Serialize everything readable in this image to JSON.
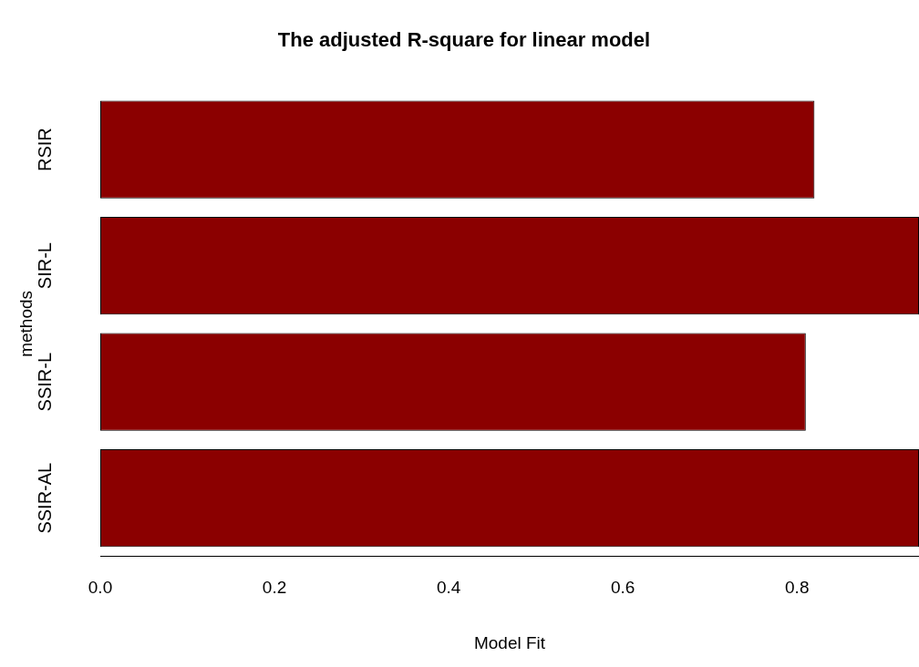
{
  "chart_data": {
    "type": "bar",
    "orientation": "horizontal",
    "title": "The adjusted R-square for linear model",
    "xlabel": "Model Fit",
    "ylabel": "methods",
    "categories": [
      "RSIR",
      "SIR-L",
      "SSIR-L",
      "SSIR-AL"
    ],
    "values": [
      0.82,
      0.94,
      0.81,
      0.94
    ],
    "color": "#8b0000",
    "xlim": [
      0,
      0.94
    ],
    "xticks": [
      {
        "value": 0,
        "label": "0.0"
      },
      0.2,
      0.4,
      0.6,
      0.8
    ],
    "grid": false
  }
}
